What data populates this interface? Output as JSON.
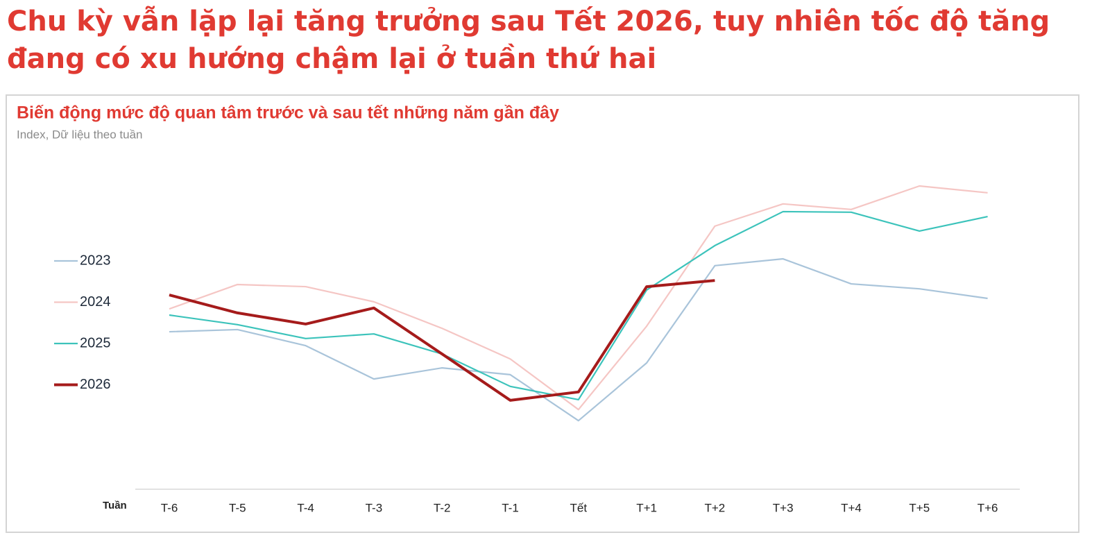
{
  "chart_data": {
    "type": "line",
    "title": "Chu kỳ vẫn lặp lại tăng trưởng sau Tết 2026, tuy nhiên tốc độ tăng đang có xu hướng chậm lại ở tuần thứ hai",
    "subtitle": "Biến động mức độ quan tâm trước và sau tết những năm gần đây",
    "y_label": "Index, Dữ liệu theo tuần",
    "x_label": "Tuần",
    "categories": [
      "T-6",
      "T-5",
      "T-4",
      "T-3",
      "T-2",
      "T-1",
      "Tết",
      "T+1",
      "T+2",
      "T+3",
      "T+4",
      "T+5",
      "T+6"
    ],
    "ylim": [
      0,
      100
    ],
    "legend": "left",
    "series": [
      {
        "name": "2023",
        "color": "#a9c4da",
        "values": [
          51.0,
          51.7,
          46.5,
          35.7,
          39.3,
          37.1,
          22.2,
          40.9,
          72.4,
          74.6,
          66.5,
          64.9,
          61.8
        ]
      },
      {
        "name": "2024",
        "color": "#f5c6c4",
        "values": [
          58.4,
          66.3,
          65.6,
          60.7,
          52.1,
          42.2,
          25.8,
          52.8,
          85.2,
          92.4,
          90.6,
          98.2,
          96.0
        ]
      },
      {
        "name": "2025",
        "color": "#3cc3bb",
        "values": [
          56.4,
          53.3,
          48.8,
          50.3,
          43.8,
          33.3,
          29.0,
          64.5,
          78.9,
          89.9,
          89.7,
          83.6,
          88.3
        ]
      },
      {
        "name": "2026",
        "color": "#a51b1b",
        "values": [
          62.9,
          57.1,
          53.5,
          58.7,
          43.8,
          28.8,
          31.5,
          65.6,
          67.6,
          null,
          null,
          null,
          null
        ]
      }
    ]
  }
}
